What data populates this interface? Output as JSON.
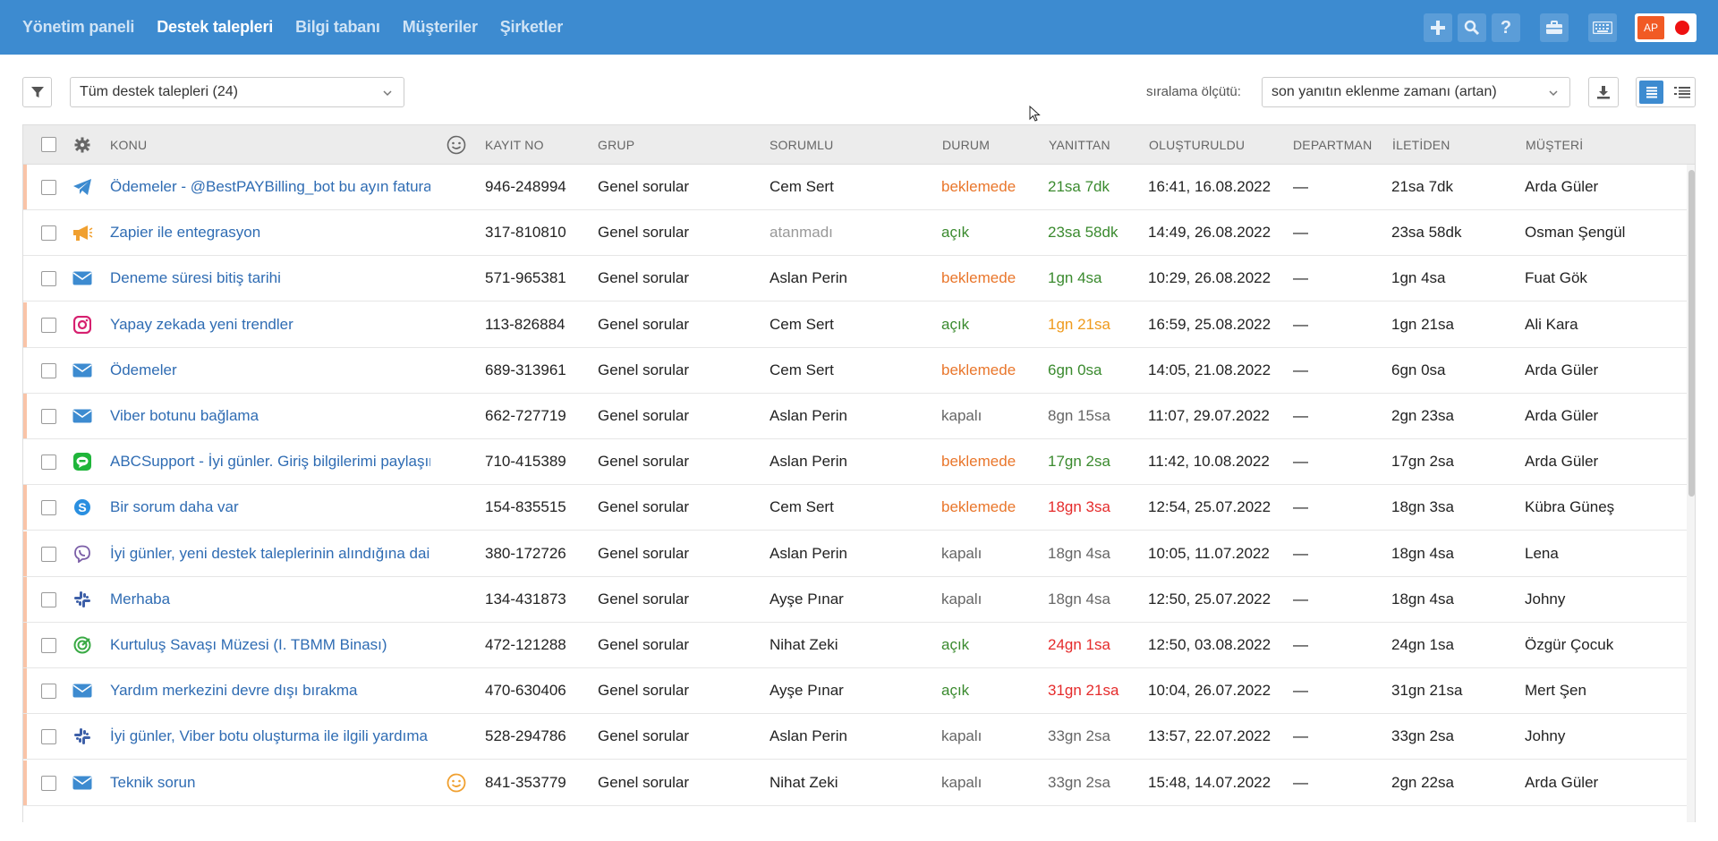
{
  "nav": {
    "items": [
      {
        "label": "Yönetim paneli",
        "active": false
      },
      {
        "label": "Destek talepleri",
        "active": true
      },
      {
        "label": "Bilgi tabanı",
        "active": false
      },
      {
        "label": "Müşteriler",
        "active": false
      },
      {
        "label": "Şirketler",
        "active": false
      }
    ]
  },
  "user": {
    "initials": "AP",
    "status_color": "#ee1111"
  },
  "toolbar": {
    "filter_select": "Tüm destek talepleri (24)",
    "sort_label": "sıralama ölçütü:",
    "sort_select": "son yanıtın eklenme zamanı (artan)"
  },
  "columns": {
    "subject": "KONU",
    "id": "KAYIT NO",
    "group": "GRUP",
    "owner": "SORUMLU",
    "status": "DURUM",
    "reply": "YANITTAN",
    "created": "OLUŞTURULDU",
    "department": "DEPARTMAN",
    "message": "İLETİDEN",
    "customer": "MÜŞTERİ"
  },
  "tickets": [
    {
      "channel": "telegram-icon",
      "subject": "Ödemeler - @BestPAYBilling_bot bu ayın faturası",
      "id": "946-248994",
      "group": "Genel sorular",
      "owner": "Cem Sert",
      "status": "beklemede",
      "reply": "21sa 7dk",
      "reply_color": "green",
      "created": "16:41, 16.08.2022",
      "department": "—",
      "message": "21sa 7dk",
      "customer": "Arda Güler",
      "marked": true,
      "smiley": false
    },
    {
      "channel": "megaphone-icon",
      "subject": "Zapier ile entegrasyon",
      "id": "317-810810",
      "group": "Genel sorular",
      "owner": "atanmadı",
      "status": "açık",
      "reply": "23sa 58dk",
      "reply_color": "green",
      "created": "14:49, 26.08.2022",
      "department": "—",
      "message": "23sa 58dk",
      "customer": "Osman Şengül",
      "marked": false,
      "smiley": false
    },
    {
      "channel": "mail-icon",
      "subject": "Deneme süresi bitiş tarihi",
      "id": "571-965381",
      "group": "Genel sorular",
      "owner": "Aslan Perin",
      "status": "beklemede",
      "reply": "1gn 4sa",
      "reply_color": "green",
      "created": "10:29, 26.08.2022",
      "department": "—",
      "message": "1gn 4sa",
      "customer": "Fuat Gök",
      "marked": false,
      "smiley": false
    },
    {
      "channel": "instagram-icon",
      "subject": "Yapay zekada yeni trendler",
      "id": "113-826884",
      "group": "Genel sorular",
      "owner": "Cem Sert",
      "status": "açık",
      "reply": "1gn 21sa",
      "reply_color": "amber",
      "created": "16:59, 25.08.2022",
      "department": "—",
      "message": "1gn 21sa",
      "customer": "Ali Kara",
      "marked": true,
      "smiley": false
    },
    {
      "channel": "mail-icon",
      "subject": "Ödemeler",
      "id": "689-313961",
      "group": "Genel sorular",
      "owner": "Cem Sert",
      "status": "beklemede",
      "reply": "6gn 0sa",
      "reply_color": "green",
      "created": "14:05, 21.08.2022",
      "department": "—",
      "message": "6gn 0sa",
      "customer": "Arda Güler",
      "marked": false,
      "smiley": false
    },
    {
      "channel": "mail-icon",
      "subject": "Viber botunu bağlama",
      "id": "662-727719",
      "group": "Genel sorular",
      "owner": "Aslan Perin",
      "status": "kapalı",
      "reply": "8gn 15sa",
      "reply_color": "grey",
      "created": "11:07, 29.07.2022",
      "department": "—",
      "message": "2gn 23sa",
      "customer": "Arda Güler",
      "marked": true,
      "smiley": false
    },
    {
      "channel": "line-icon",
      "subject": "ABCSupport - İyi günler. Giriş bilgilerimi paylaşır mısınız",
      "id": "710-415389",
      "group": "Genel sorular",
      "owner": "Aslan Perin",
      "status": "beklemede",
      "reply": "17gn 2sa",
      "reply_color": "green",
      "created": "11:42, 10.08.2022",
      "department": "—",
      "message": "17gn 2sa",
      "customer": "Arda Güler",
      "marked": false,
      "smiley": false
    },
    {
      "channel": "skype-icon",
      "subject": "Bir sorum daha var",
      "id": "154-835515",
      "group": "Genel sorular",
      "owner": "Cem Sert",
      "status": "beklemede",
      "reply": "18gn 3sa",
      "reply_color": "red",
      "created": "12:54, 25.07.2022",
      "department": "—",
      "message": "18gn 3sa",
      "customer": "Kübra Güneş",
      "marked": true,
      "smiley": false
    },
    {
      "channel": "viber-icon",
      "subject": "İyi günler, yeni destek taleplerinin alındığına dair",
      "id": "380-172726",
      "group": "Genel sorular",
      "owner": "Aslan Perin",
      "status": "kapalı",
      "reply": "18gn 4sa",
      "reply_color": "grey",
      "created": "10:05, 11.07.2022",
      "department": "—",
      "message": "18gn 4sa",
      "customer": "Lena",
      "marked": true,
      "smiley": false
    },
    {
      "channel": "slack-icon",
      "subject": "Merhaba",
      "id": "134-431873",
      "group": "Genel sorular",
      "owner": "Ayşe Pınar",
      "status": "kapalı",
      "reply": "18gn 4sa",
      "reply_color": "grey",
      "created": "12:50, 25.07.2022",
      "department": "—",
      "message": "18gn 4sa",
      "customer": "Johny",
      "marked": true,
      "smiley": false
    },
    {
      "channel": "widget-icon",
      "subject": "Kurtuluş Savaşı Müzesi (I. TBMM Binası)",
      "id": "472-121288",
      "group": "Genel sorular",
      "owner": "Nihat Zeki",
      "status": "açık",
      "reply": "24gn 1sa",
      "reply_color": "red",
      "created": "12:50, 03.08.2022",
      "department": "—",
      "message": "24gn 1sa",
      "customer": "Özgür Çocuk",
      "marked": true,
      "smiley": false
    },
    {
      "channel": "mail-icon",
      "subject": "Yardım merkezini devre dışı bırakma",
      "id": "470-630406",
      "group": "Genel sorular",
      "owner": "Ayşe Pınar",
      "status": "açık",
      "reply": "31gn 21sa",
      "reply_color": "red",
      "created": "10:04, 26.07.2022",
      "department": "—",
      "message": "31gn 21sa",
      "customer": "Mert Şen",
      "marked": true,
      "smiley": false
    },
    {
      "channel": "slack-icon",
      "subject": "İyi günler, Viber botu oluşturma ile ilgili yardıma",
      "id": "528-294786",
      "group": "Genel sorular",
      "owner": "Aslan Perin",
      "status": "kapalı",
      "reply": "33gn 2sa",
      "reply_color": "grey",
      "created": "13:57, 22.07.2022",
      "department": "—",
      "message": "33gn 2sa",
      "customer": "Johny",
      "marked": true,
      "smiley": false
    },
    {
      "channel": "mail-icon",
      "subject": "Teknik sorun",
      "id": "841-353779",
      "group": "Genel sorular",
      "owner": "Nihat Zeki",
      "status": "kapalı",
      "reply": "33gn 2sa",
      "reply_color": "grey",
      "created": "15:48, 14.07.2022",
      "department": "—",
      "message": "2gn 22sa",
      "customer": "Arda Güler",
      "marked": true,
      "smiley": true
    }
  ]
}
